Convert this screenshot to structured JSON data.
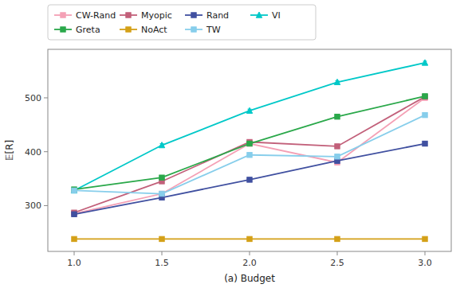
{
  "chart_data": {
    "type": "line",
    "xlabel": "(a) Budget",
    "ylabel": "𝔼[R]",
    "x": [
      1.0,
      1.5,
      2.0,
      2.5,
      3.0
    ],
    "series": [
      {
        "name": "CW-Rand",
        "color": "#f4a0b5",
        "marker": "square",
        "values": [
          285,
          322,
          415,
          380,
          500
        ],
        "yerr": [
          3,
          3,
          4,
          3,
          4
        ]
      },
      {
        "name": "Myopic",
        "color": "#c2607a",
        "marker": "square",
        "values": [
          287,
          345,
          418,
          410,
          502
        ],
        "yerr": [
          3,
          3,
          4,
          3,
          4
        ]
      },
      {
        "name": "Rand",
        "color": "#4050a0",
        "marker": "square",
        "values": [
          284,
          315,
          348,
          383,
          415
        ],
        "yerr": [
          3,
          3,
          3,
          3,
          4
        ]
      },
      {
        "name": "VI",
        "color": "#00c8c8",
        "marker": "triangle",
        "values": [
          328,
          412,
          476,
          529,
          565
        ],
        "yerr": [
          2,
          3,
          3,
          3,
          3
        ]
      },
      {
        "name": "Greta",
        "color": "#2aa84a",
        "marker": "square",
        "values": [
          330,
          352,
          415,
          465,
          503
        ],
        "yerr": [
          2,
          3,
          3,
          3,
          3
        ]
      },
      {
        "name": "NoAct",
        "color": "#d4a017",
        "marker": "square",
        "values": [
          238,
          238,
          238,
          238,
          238
        ],
        "yerr": [
          1,
          1,
          1,
          1,
          1
        ]
      },
      {
        "name": "TW",
        "color": "#87ceeb",
        "marker": "square",
        "values": [
          328,
          322,
          394,
          391,
          468
        ],
        "yerr": [
          2,
          3,
          3,
          3,
          4
        ]
      }
    ],
    "xlim": [
      0.85,
      3.15
    ],
    "ylim": [
      215,
      590
    ],
    "xticks": [
      {
        "value": 1.0,
        "label": "1.0"
      },
      1.5,
      {
        "value": 2.0,
        "label": "2.0"
      },
      2.5,
      {
        "value": 3.0,
        "label": "3.0"
      }
    ],
    "yticks": [
      300,
      400,
      500
    ],
    "grid": false,
    "legend": "top"
  }
}
